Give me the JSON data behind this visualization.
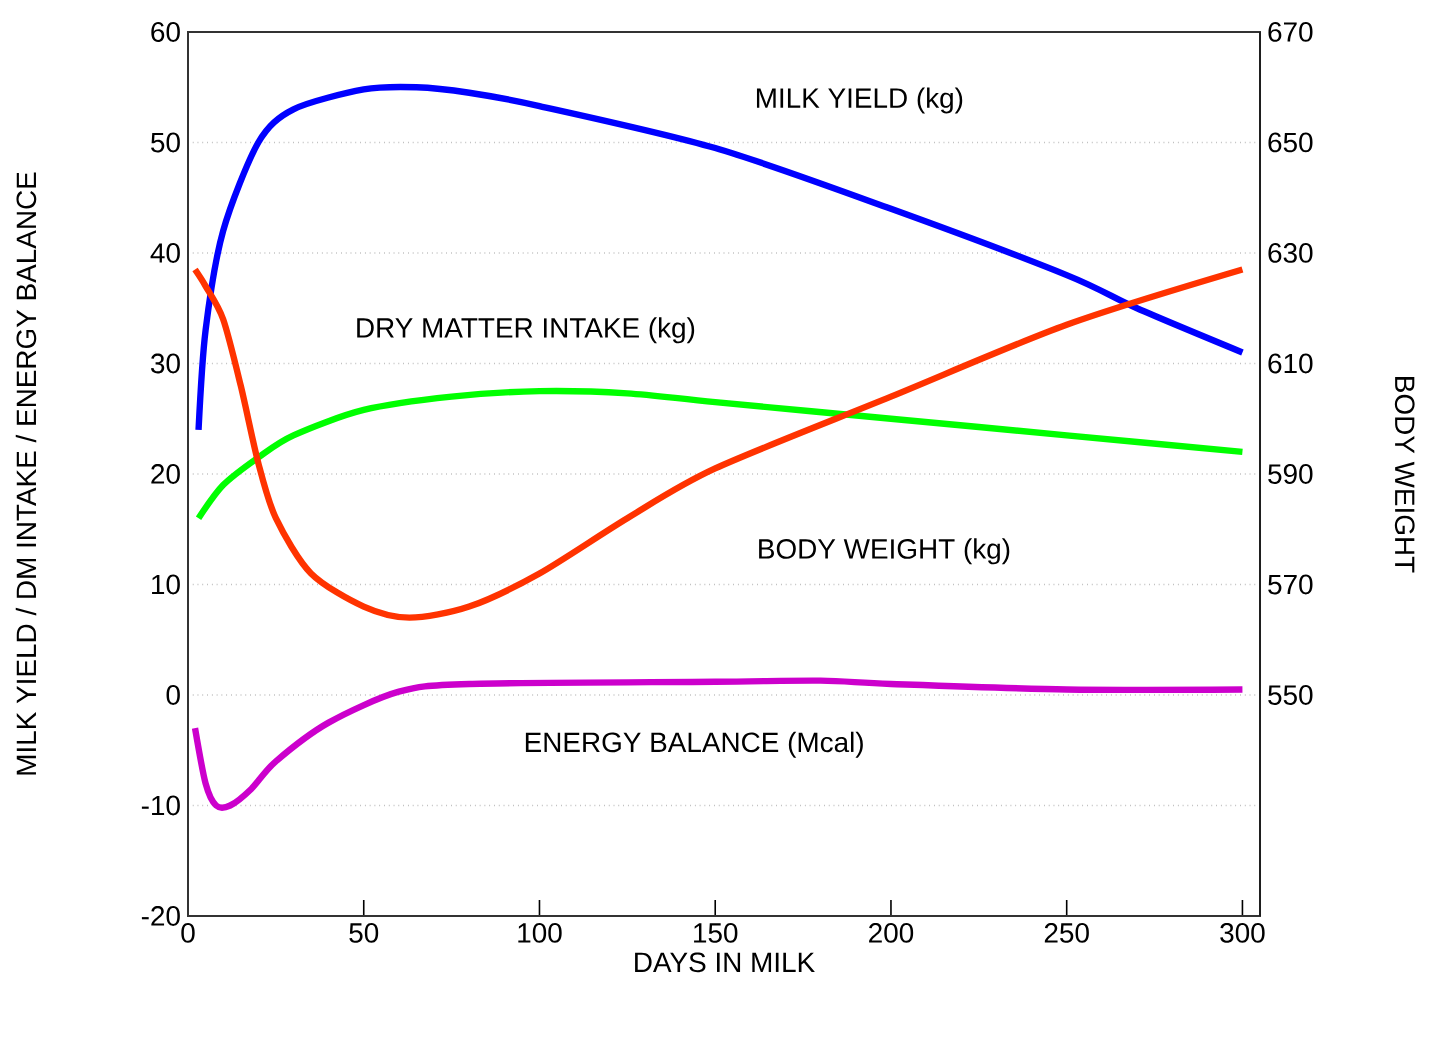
{
  "chart_data": {
    "type": "line",
    "xlabel": "DAYS IN MILK",
    "ylabel": "MILK YIELD / DM INTAKE / ENERGY BALANCE",
    "y2label": "BODY WEIGHT",
    "xlim": [
      0,
      305
    ],
    "xticks": [
      0,
      50,
      100,
      150,
      200,
      250,
      300
    ],
    "ylim": [
      -20,
      60
    ],
    "yticks": [
      -20,
      -10,
      0,
      10,
      20,
      30,
      40,
      50,
      60
    ],
    "y2lim": [
      510,
      670
    ],
    "y2ticks": [
      550,
      570,
      590,
      610,
      630,
      650,
      670
    ],
    "grid": "y",
    "marker": "none",
    "line_style": "solid",
    "series": [
      {
        "name": "MILK YIELD (kg)",
        "color": "#0000ff",
        "x": [
          3,
          5,
          10,
          20,
          30,
          50,
          65,
          80,
          100,
          150,
          200,
          250,
          270,
          300
        ],
        "values": [
          24,
          33,
          42,
          50,
          53,
          54.8,
          55,
          54.5,
          53.3,
          49.5,
          44,
          38,
          35,
          31
        ]
      },
      {
        "name": "DRY MATTER INTAKE (kg)",
        "color": "#00ff00",
        "x": [
          3,
          10,
          20,
          30,
          50,
          75,
          100,
          125,
          150,
          200,
          250,
          300
        ],
        "values": [
          16,
          19,
          21.5,
          23.5,
          25.8,
          27,
          27.5,
          27.3,
          26.5,
          25,
          23.5,
          22
        ]
      },
      {
        "name": "BODY WEIGHT (kg)",
        "color": "#ff3300",
        "axis": "y2",
        "x": [
          2,
          5,
          10,
          15,
          20,
          25,
          35,
          50,
          63,
          80,
          100,
          125,
          150,
          200,
          250,
          300
        ],
        "values": [
          627,
          624,
          618,
          606,
          592,
          582,
          572,
          566,
          564,
          566,
          572,
          582,
          591,
          604,
          617,
          627
        ]
      },
      {
        "name": "ENERGY BALANCE (Mcal)",
        "color": "#cc00cc",
        "x": [
          2,
          5,
          8,
          12,
          18,
          25,
          40,
          60,
          80,
          150,
          180,
          200,
          250,
          300
        ],
        "values": [
          -3,
          -8,
          -10,
          -10,
          -8.5,
          -6,
          -2.5,
          0.3,
          1,
          1.2,
          1.3,
          1,
          0.5,
          0.5
        ]
      }
    ]
  }
}
